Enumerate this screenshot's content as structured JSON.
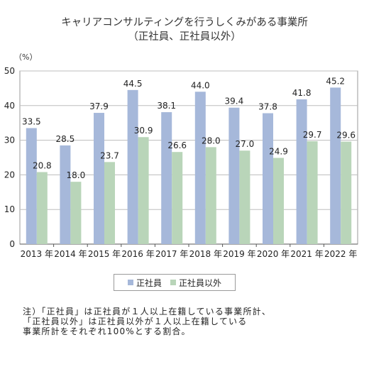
{
  "title_line1": "キャリアコンサルティングを行うしくみがある事業所",
  "title_line2": "（正社員、正社員以外）",
  "unit_label": "（%）",
  "note_lines": [
    "注）「正社員」は正社員が１人以上在籍している事業所計、",
    "「正社員以外」は正社員以外が１人以上在籍している",
    "事業所計をそれぞれ100%とする割合。"
  ],
  "colors": {
    "series1": "#a6b8da",
    "series2": "#b9d5b9",
    "grid": "#bdbdbd",
    "axis": "#555555"
  },
  "chart_data": {
    "type": "bar",
    "title": "キャリアコンサルティングを行うしくみがある事業所（正社員、正社員以外）",
    "categories": [
      "2013 年",
      "2014 年",
      "2015 年",
      "2016 年",
      "2017 年",
      "2018 年",
      "2019 年",
      "2020 年",
      "2021 年",
      "2022 年"
    ],
    "series": [
      {
        "name": "正社員",
        "values": [
          33.5,
          28.5,
          37.9,
          44.5,
          38.1,
          44.0,
          39.4,
          37.8,
          41.8,
          45.2
        ]
      },
      {
        "name": "正社員以外",
        "values": [
          20.8,
          18.0,
          23.7,
          30.9,
          26.6,
          28.0,
          27.0,
          24.9,
          29.7,
          29.6
        ]
      }
    ],
    "ylim": [
      0,
      50
    ],
    "yticks": [
      0,
      10,
      20,
      30,
      40,
      50
    ],
    "ylabel": "（%）",
    "grid": true,
    "legend_position": "bottom"
  }
}
